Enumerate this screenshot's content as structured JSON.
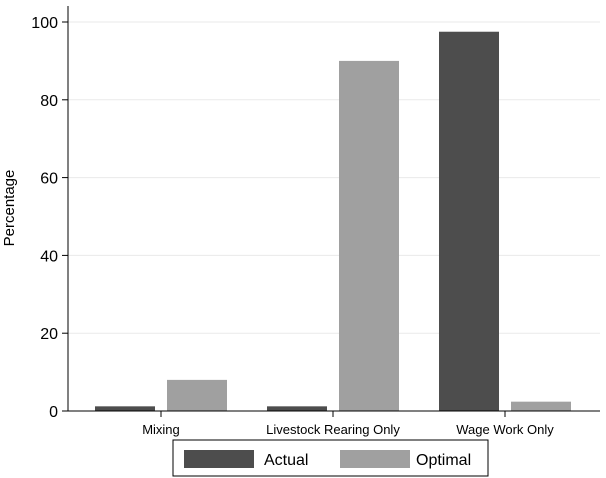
{
  "chart_data": {
    "type": "bar",
    "categories": [
      "Mixing",
      "Livestock Rearing Only",
      "Wage Work Only"
    ],
    "series": [
      {
        "name": "Actual",
        "values": [
          1.2,
          1.2,
          97.5
        ],
        "color": "#4d4d4d"
      },
      {
        "name": "Optimal",
        "values": [
          8.0,
          90.0,
          2.4
        ],
        "color": "#a0a0a0"
      }
    ],
    "title": "",
    "xlabel": "",
    "ylabel": "Percentage",
    "ylim": [
      0,
      100
    ],
    "yticks": [
      0,
      20,
      40,
      60,
      80,
      100
    ],
    "grid": true,
    "legend_position": "bottom"
  }
}
